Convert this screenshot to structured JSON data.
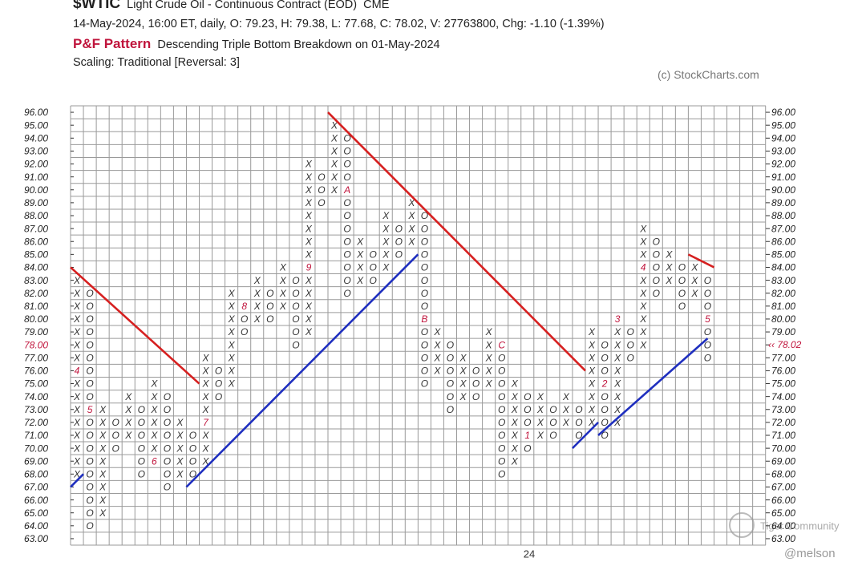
{
  "chart_data": {
    "type": "point-and-figure",
    "symbol": "$WTIC",
    "name": "Light Crude Oil - Continuous Contract (EOD)",
    "exchange": "CME",
    "quote_line": "14-May-2024, 16:00 ET, daily, O: 79.23, H: 79.38, L: 77.68, C: 78.02, V: 27763800, Chg: -1.10 (-1.39%)",
    "pattern_title": "P&F Pattern",
    "pattern": "Descending Triple Bottom Breakdown on 01-May-2024",
    "scaling": "Scaling: Traditional [Reversal: 3]",
    "credit": "(c) StockCharts.com",
    "year_label": "24",
    "watermark": "Tiger Community",
    "author": "@melson",
    "box_size": 1,
    "grid": true,
    "ylim": [
      63,
      96
    ],
    "yticks": [
      {
        "value": 96,
        "label": "96.00"
      },
      {
        "value": 95,
        "label": "95.00"
      },
      {
        "value": 94,
        "label": "94.00"
      },
      {
        "value": 93,
        "label": "93.00"
      },
      {
        "value": 92,
        "label": "92.00"
      },
      {
        "value": 91,
        "label": "91.00"
      },
      {
        "value": 90,
        "label": "90.00"
      },
      {
        "value": 89,
        "label": "89.00"
      },
      {
        "value": 88,
        "label": "88.00"
      },
      {
        "value": 87,
        "label": "87.00"
      },
      {
        "value": 86,
        "label": "86.00"
      },
      {
        "value": 85,
        "label": "85.00"
      },
      {
        "value": 84,
        "label": "84.00"
      },
      {
        "value": 83,
        "label": "83.00"
      },
      {
        "value": 82,
        "label": "82.00"
      },
      {
        "value": 81,
        "label": "81.00"
      },
      {
        "value": 80,
        "label": "80.00"
      },
      {
        "value": 79,
        "label": "79.00"
      },
      {
        "value": 78,
        "label": "78.00"
      },
      {
        "value": 77,
        "label": "77.00"
      },
      {
        "value": 76,
        "label": "76.00"
      },
      {
        "value": 75,
        "label": "75.00"
      },
      {
        "value": 74,
        "label": "74.00"
      },
      {
        "value": 73,
        "label": "73.00"
      },
      {
        "value": 72,
        "label": "72.00"
      },
      {
        "value": 71,
        "label": "71.00"
      },
      {
        "value": 70,
        "label": "70.00"
      },
      {
        "value": 69,
        "label": "69.00"
      },
      {
        "value": 68,
        "label": "68.00"
      },
      {
        "value": 67,
        "label": "67.00"
      },
      {
        "value": 66,
        "label": "66.00"
      },
      {
        "value": 65,
        "label": "65.00"
      },
      {
        "value": 64,
        "label": "64.00"
      },
      {
        "value": 63,
        "label": "63.00"
      }
    ],
    "current_price": {
      "value": 78.02,
      "label": "‹‹ 78.02"
    },
    "x_color": "#333333",
    "o_color": "#333333",
    "marker_color": "#c0143c",
    "price_color": "#c0143c",
    "columns": [
      {
        "type": "X",
        "from": 68,
        "to": 83,
        "marks": [
          {
            "value": 76,
            "label": "4"
          }
        ]
      },
      {
        "type": "O",
        "from": 82,
        "to": 64,
        "marks": [
          {
            "value": 73,
            "label": "5"
          }
        ]
      },
      {
        "type": "X",
        "from": 65,
        "to": 73
      },
      {
        "type": "O",
        "from": 72,
        "to": 70
      },
      {
        "type": "X",
        "from": 71,
        "to": 74
      },
      {
        "type": "O",
        "from": 73,
        "to": 68
      },
      {
        "type": "X",
        "from": 69,
        "to": 75,
        "marks": [
          {
            "value": 69,
            "label": "6"
          }
        ]
      },
      {
        "type": "O",
        "from": 74,
        "to": 67
      },
      {
        "type": "X",
        "from": 68,
        "to": 72
      },
      {
        "type": "O",
        "from": 71,
        "to": 68
      },
      {
        "type": "X",
        "from": 69,
        "to": 77,
        "marks": [
          {
            "value": 72,
            "label": "7"
          }
        ]
      },
      {
        "type": "O",
        "from": 76,
        "to": 74
      },
      {
        "type": "X",
        "from": 75,
        "to": 82
      },
      {
        "type": "O",
        "from": 81,
        "to": 79,
        "marks": [
          {
            "value": 81,
            "label": "8"
          }
        ]
      },
      {
        "type": "X",
        "from": 80,
        "to": 83
      },
      {
        "type": "O",
        "from": 82,
        "to": 80
      },
      {
        "type": "X",
        "from": 81,
        "to": 84
      },
      {
        "type": "O",
        "from": 83,
        "to": 78
      },
      {
        "type": "X",
        "from": 79,
        "to": 92,
        "marks": [
          {
            "value": 84,
            "label": "9"
          }
        ]
      },
      {
        "type": "O",
        "from": 91,
        "to": 89
      },
      {
        "type": "X",
        "from": 90,
        "to": 95
      },
      {
        "type": "O",
        "from": 94,
        "to": 82,
        "marks": [
          {
            "value": 90,
            "label": "A"
          }
        ]
      },
      {
        "type": "X",
        "from": 83,
        "to": 86
      },
      {
        "type": "O",
        "from": 85,
        "to": 83
      },
      {
        "type": "X",
        "from": 84,
        "to": 88
      },
      {
        "type": "O",
        "from": 87,
        "to": 85
      },
      {
        "type": "X",
        "from": 86,
        "to": 89
      },
      {
        "type": "O",
        "from": 88,
        "to": 75,
        "marks": [
          {
            "value": 80,
            "label": "B"
          }
        ]
      },
      {
        "type": "X",
        "from": 76,
        "to": 79
      },
      {
        "type": "O",
        "from": 78,
        "to": 73
      },
      {
        "type": "X",
        "from": 74,
        "to": 77
      },
      {
        "type": "O",
        "from": 76,
        "to": 74
      },
      {
        "type": "X",
        "from": 75,
        "to": 79
      },
      {
        "type": "O",
        "from": 78,
        "to": 68,
        "marks": [
          {
            "value": 78,
            "label": "C"
          }
        ]
      },
      {
        "type": "X",
        "from": 69,
        "to": 75
      },
      {
        "type": "O",
        "from": 74,
        "to": 70,
        "marks": [
          {
            "value": 71,
            "label": "1"
          }
        ]
      },
      {
        "type": "X",
        "from": 71,
        "to": 74
      },
      {
        "type": "O",
        "from": 73,
        "to": 71
      },
      {
        "type": "X",
        "from": 72,
        "to": 74
      },
      {
        "type": "O",
        "from": 73,
        "to": 71
      },
      {
        "type": "X",
        "from": 72,
        "to": 79
      },
      {
        "type": "O",
        "from": 78,
        "to": 71,
        "marks": [
          {
            "value": 75,
            "label": "2"
          }
        ]
      },
      {
        "type": "X",
        "from": 72,
        "to": 80,
        "marks": [
          {
            "value": 80,
            "label": "3"
          }
        ]
      },
      {
        "type": "O",
        "from": 79,
        "to": 77
      },
      {
        "type": "X",
        "from": 78,
        "to": 87,
        "marks": [
          {
            "value": 84,
            "label": "4"
          }
        ]
      },
      {
        "type": "O",
        "from": 86,
        "to": 82
      },
      {
        "type": "X",
        "from": 83,
        "to": 85
      },
      {
        "type": "O",
        "from": 84,
        "to": 81
      },
      {
        "type": "X",
        "from": 82,
        "to": 84
      },
      {
        "type": "O",
        "from": 83,
        "to": 77,
        "marks": [
          {
            "value": 80,
            "label": "5"
          }
        ]
      }
    ],
    "trendlines": [
      {
        "color": "#d62020",
        "start": [
          0,
          84
        ],
        "end": [
          10,
          75
        ]
      },
      {
        "color": "#d62020",
        "start": [
          20,
          96
        ],
        "end": [
          40,
          76
        ]
      },
      {
        "color": "#d62020",
        "start": [
          48,
          85
        ],
        "end": [
          50,
          84
        ]
      },
      {
        "color": "#1f2fbf",
        "start": [
          0,
          67
        ],
        "end": [
          1,
          68
        ]
      },
      {
        "color": "#1f2fbf",
        "start": [
          9,
          67
        ],
        "end": [
          27,
          85
        ]
      },
      {
        "color": "#1f2fbf",
        "start": [
          39,
          70
        ],
        "end": [
          41,
          72
        ]
      },
      {
        "color": "#1f2fbf",
        "start": [
          41,
          71
        ],
        "end": [
          49.5,
          78.5
        ]
      }
    ]
  }
}
